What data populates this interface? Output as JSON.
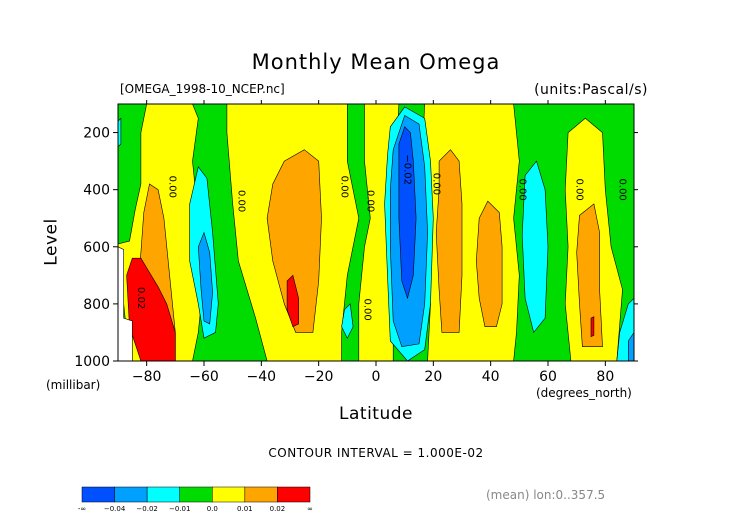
{
  "chart_data": {
    "type": "heatmap",
    "title": "Monthly Mean Omega",
    "file_label": "[OMEGA_1998-10_NCEP.nc]",
    "units_label": "(units:Pascal/s)",
    "xlabel": "Latitude",
    "xunit": "(degrees_north)",
    "ylabel": "Level",
    "yunit": "(millibar)",
    "xlim": [
      -90,
      90
    ],
    "ylim": [
      1000,
      100
    ],
    "x_ticks": [
      -80,
      -60,
      -40,
      -20,
      0,
      20,
      40,
      60,
      80
    ],
    "x_tick_labels": [
      "−80",
      "−60",
      "−40",
      "−20",
      "0",
      "20",
      "40",
      "60",
      "80"
    ],
    "y_ticks": [
      200,
      400,
      600,
      800,
      1000
    ],
    "y_tick_labels": [
      "200",
      "400",
      "600",
      "800",
      "1000"
    ],
    "contour_interval_text": "CONTOUR INTERVAL = 1.000E-02",
    "footnote": "(mean) lon:0..357.5",
    "colorbar": {
      "colors": [
        "#0050ff",
        "#00a0ff",
        "#00ffff",
        "#00dc00",
        "#ffff00",
        "#ffa500",
        "#ff0000"
      ],
      "labels": [
        "-∞",
        "−0.04",
        "−0.02",
        "−0.01",
        "0.0",
        "0.01",
        "0.02",
        "∞"
      ]
    },
    "background_color": "#00dc00",
    "regions": [
      {
        "name": "yellow-south-polar",
        "color": "#ffff00",
        "points": [
          [
            -90,
            590
          ],
          [
            -86,
            580
          ],
          [
            -84,
            470
          ],
          [
            -82,
            380
          ],
          [
            -82,
            200
          ],
          [
            -80,
            100
          ],
          [
            -64,
            100
          ],
          [
            -62,
            150
          ],
          [
            -64,
            300
          ],
          [
            -62,
            500
          ],
          [
            -60,
            700
          ],
          [
            -62,
            900
          ],
          [
            -64,
            1000
          ],
          [
            -86,
            1000
          ],
          [
            -88,
            800
          ],
          [
            -90,
            700
          ]
        ]
      },
      {
        "name": "orange-south-polar",
        "color": "#ffa500",
        "points": [
          [
            -82,
            620
          ],
          [
            -81,
            480
          ],
          [
            -79,
            380
          ],
          [
            -76,
            400
          ],
          [
            -74,
            500
          ],
          [
            -72,
            700
          ],
          [
            -70,
            900
          ],
          [
            -70,
            1000
          ],
          [
            -82,
            1000
          ],
          [
            -84,
            800
          ]
        ]
      },
      {
        "name": "red-south-polar",
        "color": "#ff0000",
        "points": [
          [
            -87,
            700
          ],
          [
            -85,
            640
          ],
          [
            -82,
            640
          ],
          [
            -79,
            690
          ],
          [
            -76,
            740
          ],
          [
            -73,
            800
          ],
          [
            -70,
            900
          ],
          [
            -70,
            1000
          ],
          [
            -82,
            1000
          ],
          [
            -86,
            880
          ]
        ]
      },
      {
        "name": "yellow-south-mid",
        "color": "#ffff00",
        "points": [
          [
            -52,
            100
          ],
          [
            -10,
            100
          ],
          [
            -10,
            300
          ],
          [
            -6,
            500
          ],
          [
            -10,
            700
          ],
          [
            -12,
            900
          ],
          [
            -12,
            1000
          ],
          [
            -38,
            1000
          ],
          [
            -42,
            850
          ],
          [
            -48,
            650
          ],
          [
            -50,
            450
          ],
          [
            -52,
            200
          ]
        ]
      },
      {
        "name": "orange-south-mid",
        "color": "#ffa500",
        "points": [
          [
            -32,
            300
          ],
          [
            -25,
            260
          ],
          [
            -20,
            300
          ],
          [
            -19,
            500
          ],
          [
            -20,
            720
          ],
          [
            -22,
            900
          ],
          [
            -28,
            900
          ],
          [
            -32,
            800
          ],
          [
            -36,
            650
          ],
          [
            -38,
            500
          ],
          [
            -36,
            380
          ]
        ]
      },
      {
        "name": "red-south-mid",
        "color": "#ff0000",
        "points": [
          [
            -31,
            720
          ],
          [
            -29,
            700
          ],
          [
            -27,
            780
          ],
          [
            -27,
            870
          ],
          [
            -29,
            880
          ],
          [
            -31,
            820
          ]
        ]
      },
      {
        "name": "yellow-equatorial",
        "color": "#ffff00",
        "points": [
          [
            -4,
            100
          ],
          [
            8,
            100
          ],
          [
            7,
            300
          ],
          [
            6,
            500
          ],
          [
            7,
            700
          ],
          [
            6,
            900
          ],
          [
            6,
            1000
          ],
          [
            -6,
            1000
          ],
          [
            -6,
            800
          ],
          [
            -4,
            600
          ],
          [
            -2,
            500
          ],
          [
            -4,
            300
          ]
        ]
      },
      {
        "name": "yellow-north-mid",
        "color": "#ffff00",
        "points": [
          [
            17,
            100
          ],
          [
            48,
            100
          ],
          [
            50,
            300
          ],
          [
            48,
            500
          ],
          [
            50,
            700
          ],
          [
            49,
            900
          ],
          [
            48,
            1000
          ],
          [
            18,
            1000
          ],
          [
            19,
            800
          ],
          [
            17,
            600
          ],
          [
            16,
            300
          ]
        ]
      },
      {
        "name": "orange-north-mid-a",
        "color": "#ffa500",
        "points": [
          [
            22,
            300
          ],
          [
            26,
            260
          ],
          [
            29,
            300
          ],
          [
            30,
            450
          ],
          [
            30,
            700
          ],
          [
            29,
            900
          ],
          [
            23,
            900
          ],
          [
            22,
            750
          ],
          [
            21,
            550
          ],
          [
            22,
            400
          ]
        ]
      },
      {
        "name": "orange-north-mid-b",
        "color": "#ffa500",
        "points": [
          [
            36,
            500
          ],
          [
            39,
            440
          ],
          [
            43,
            480
          ],
          [
            44,
            600
          ],
          [
            44,
            800
          ],
          [
            42,
            880
          ],
          [
            38,
            880
          ],
          [
            36,
            780
          ],
          [
            35,
            650
          ]
        ]
      },
      {
        "name": "yellow-north-polar",
        "color": "#ffff00",
        "points": [
          [
            67,
            200
          ],
          [
            73,
            150
          ],
          [
            79,
            200
          ],
          [
            80,
            400
          ],
          [
            82,
            600
          ],
          [
            86,
            750
          ],
          [
            84,
            1000
          ],
          [
            68,
            1000
          ],
          [
            66,
            800
          ],
          [
            67,
            600
          ],
          [
            66,
            400
          ]
        ]
      },
      {
        "name": "orange-north-polar",
        "color": "#ffa500",
        "points": [
          [
            71,
            490
          ],
          [
            76,
            450
          ],
          [
            78,
            550
          ],
          [
            78,
            750
          ],
          [
            79,
            950
          ],
          [
            72,
            950
          ],
          [
            71,
            800
          ],
          [
            70,
            620
          ]
        ]
      },
      {
        "name": "red-north-polar",
        "color": "#ff0000",
        "points": [
          [
            75,
            850
          ],
          [
            76,
            845
          ],
          [
            76,
            910
          ],
          [
            75,
            915
          ]
        ]
      },
      {
        "name": "cyan-south",
        "color": "#00ffff",
        "points": [
          [
            -65,
            450
          ],
          [
            -62,
            320
          ],
          [
            -59,
            360
          ],
          [
            -57,
            550
          ],
          [
            -55,
            800
          ],
          [
            -56,
            900
          ],
          [
            -60,
            920
          ],
          [
            -62,
            800
          ],
          [
            -65,
            650
          ]
        ]
      },
      {
        "name": "blue-south",
        "color": "#00a0ff",
        "points": [
          [
            -62,
            600
          ],
          [
            -60,
            550
          ],
          [
            -58,
            620
          ],
          [
            -57,
            760
          ],
          [
            -58,
            870
          ],
          [
            -60,
            860
          ],
          [
            -61,
            750
          ]
        ]
      },
      {
        "name": "cyan-south-small",
        "color": "#00ffff",
        "points": [
          [
            -11,
            820
          ],
          [
            -9,
            800
          ],
          [
            -8,
            880
          ],
          [
            -10,
            920
          ],
          [
            -12,
            880
          ]
        ]
      },
      {
        "name": "cyan-equatorial",
        "color": "#00ffff",
        "points": [
          [
            5,
            180
          ],
          [
            10,
            110
          ],
          [
            17,
            150
          ],
          [
            19,
            300
          ],
          [
            20,
            500
          ],
          [
            19,
            800
          ],
          [
            17,
            960
          ],
          [
            11,
            1000
          ],
          [
            5,
            930
          ],
          [
            4,
            700
          ],
          [
            3,
            450
          ],
          [
            4,
            280
          ]
        ]
      },
      {
        "name": "blue-equatorial",
        "color": "#00a0ff",
        "points": [
          [
            6,
            260
          ],
          [
            10,
            140
          ],
          [
            15,
            170
          ],
          [
            17,
            320
          ],
          [
            18,
            550
          ],
          [
            17,
            800
          ],
          [
            15,
            940
          ],
          [
            9,
            950
          ],
          [
            6,
            860
          ],
          [
            5,
            600
          ],
          [
            5,
            400
          ]
        ]
      },
      {
        "name": "darkblue-equatorial",
        "color": "#0050ff",
        "points": [
          [
            8,
            240
          ],
          [
            10,
            180
          ],
          [
            12,
            200
          ],
          [
            13,
            300
          ],
          [
            14,
            500
          ],
          [
            13,
            700
          ],
          [
            11,
            780
          ],
          [
            9,
            720
          ],
          [
            8,
            500
          ]
        ]
      },
      {
        "name": "cyan-north",
        "color": "#00ffff",
        "points": [
          [
            52,
            350
          ],
          [
            56,
            300
          ],
          [
            59,
            400
          ],
          [
            60,
            600
          ],
          [
            59,
            850
          ],
          [
            55,
            900
          ],
          [
            52,
            780
          ],
          [
            51,
            560
          ]
        ]
      },
      {
        "name": "cyan-north-polar",
        "color": "#00ffff",
        "points": [
          [
            85,
            900
          ],
          [
            88,
            800
          ],
          [
            90,
            780
          ],
          [
            90,
            1000
          ],
          [
            84,
            1000
          ]
        ]
      },
      {
        "name": "blue-north-polar",
        "color": "#00a0ff",
        "points": [
          [
            88,
            930
          ],
          [
            90,
            900
          ],
          [
            90,
            1000
          ],
          [
            88,
            1000
          ]
        ]
      },
      {
        "name": "cyan-edge-top",
        "color": "#00ffff",
        "points": [
          [
            -90,
            160
          ],
          [
            -89,
            150
          ],
          [
            -89,
            240
          ],
          [
            -90,
            250
          ]
        ]
      },
      {
        "name": "white-missing",
        "color": "#ffffff",
        "points": [
          [
            -90,
            600
          ],
          [
            -88,
            610
          ],
          [
            -88,
            850
          ],
          [
            -85,
            860
          ],
          [
            -85,
            1000
          ],
          [
            -90,
            1000
          ]
        ]
      }
    ],
    "contour_labels": [
      {
        "text": "0.00",
        "x": -72,
        "y": 390
      },
      {
        "text": "0.00",
        "x": -48,
        "y": 440
      },
      {
        "text": "0.00",
        "x": -12,
        "y": 390
      },
      {
        "text": "0.00",
        "x": -3,
        "y": 440
      },
      {
        "text": "−0.02",
        "x": 10,
        "y": 330
      },
      {
        "text": "0.00",
        "x": 20,
        "y": 380
      },
      {
        "text": "0.00",
        "x": 50,
        "y": 400
      },
      {
        "text": "0.00",
        "x": 70,
        "y": 400
      },
      {
        "text": "0.00",
        "x": 85,
        "y": 400
      },
      {
        "text": "0.02",
        "x": -83,
        "y": 780
      },
      {
        "text": "0.00",
        "x": -4,
        "y": 820
      }
    ]
  }
}
